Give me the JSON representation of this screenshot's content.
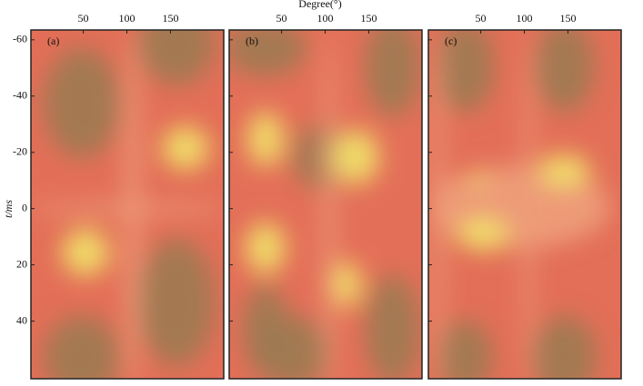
{
  "chart_data": [
    {
      "type": "heatmap",
      "panel_label": "(a)",
      "x_label": "Degree(°)",
      "y_label": "t/ms",
      "xlim": [
        -10,
        211
      ],
      "xticks": [
        50,
        100,
        150
      ],
      "ylim": [
        -63.5,
        60.5
      ],
      "y_inverted": true,
      "yticks": [
        -60,
        -40,
        -20,
        0,
        20,
        40
      ]
    },
    {
      "type": "heatmap",
      "panel_label": "(b)",
      "xlim": [
        -10,
        211
      ],
      "xticks": [
        50,
        100,
        150
      ],
      "ylim": [
        -63.5,
        60.5
      ],
      "y_inverted": true,
      "yticks": [
        -60,
        -40,
        -20,
        0,
        20,
        40
      ]
    },
    {
      "type": "heatmap",
      "panel_label": "(c)",
      "xlim": [
        -10,
        211
      ],
      "xticks": [
        50,
        100,
        150
      ],
      "ylim": [
        -63.5,
        60.5
      ],
      "y_inverted": true,
      "yticks": [
        -60,
        -40,
        -20,
        0,
        20,
        40
      ]
    }
  ]
}
